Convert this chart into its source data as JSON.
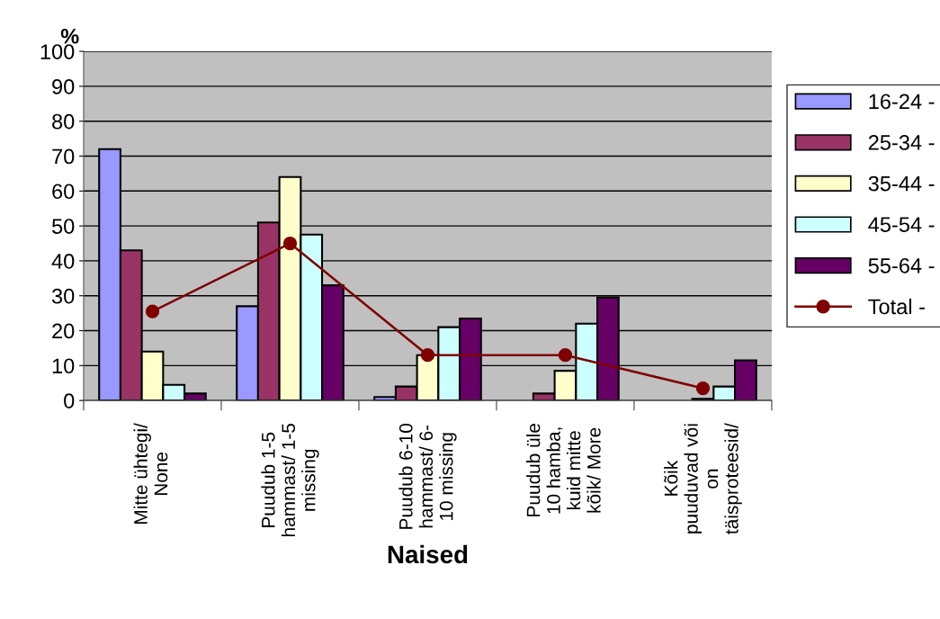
{
  "chart_data": {
    "type": "bar",
    "xlabel": "Naised",
    "ylabel": "%",
    "categories": [
      "Mitte ühtegi/\nNone",
      "Puudub 1-5\nhammast/ 1-5\nmissing",
      "Puudub 6-10\nhammast/ 6-\n10 missing",
      "Puudub üle\n10 hamba,\nkuid mitte\nkõik/ More",
      "Kõik\npuuduvad või\non\ntäisproteesid/"
    ],
    "series": [
      {
        "name": "16-24 -",
        "color": "#9999ff",
        "values": [
          72,
          27,
          1,
          null,
          null
        ]
      },
      {
        "name": "25-34 -",
        "color": "#993366",
        "values": [
          43,
          51,
          4,
          2,
          null
        ]
      },
      {
        "name": "35-44 -",
        "color": "#ffffcc",
        "values": [
          14,
          64,
          13,
          8.5,
          0.5
        ]
      },
      {
        "name": "45-54 -",
        "color": "#ccffff",
        "values": [
          4.5,
          47.5,
          21,
          22,
          4
        ]
      },
      {
        "name": "55-64 -",
        "color": "#660066",
        "values": [
          2,
          33,
          23.5,
          29.5,
          11.5
        ]
      },
      {
        "name": "Total -",
        "color": "#800000",
        "type": "line",
        "marker": "circle",
        "values": [
          25.5,
          45,
          13,
          13,
          3.5
        ]
      }
    ],
    "ylim": [
      0,
      100
    ],
    "yticks": [
      0,
      10,
      20,
      30,
      40,
      50,
      60,
      70,
      80,
      90,
      100
    ],
    "grid": "y",
    "legend": "right"
  }
}
